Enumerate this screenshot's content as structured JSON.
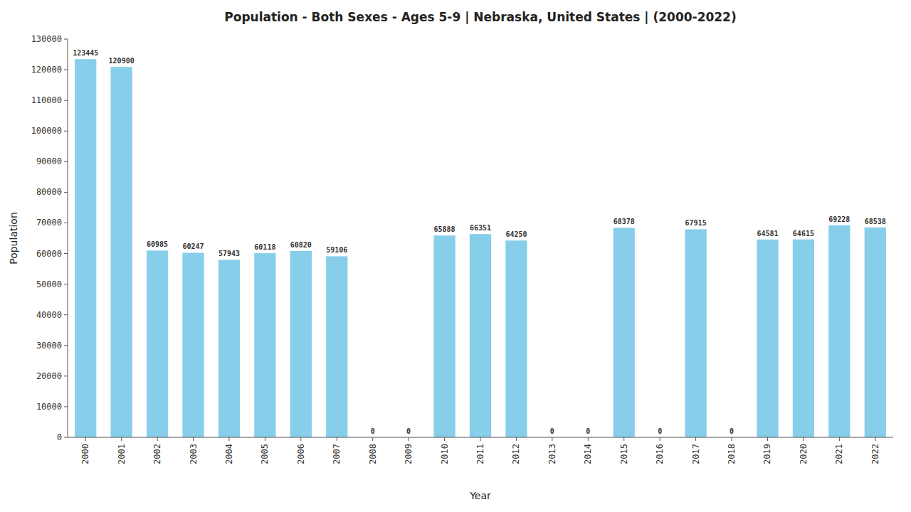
{
  "chart_data": {
    "type": "bar",
    "title": "Population - Both Sexes - Ages 5-9 | Nebraska, United States |  (2000-2022)",
    "xlabel": "Year",
    "ylabel": "Population",
    "categories": [
      "2000",
      "2001",
      "2002",
      "2003",
      "2004",
      "2005",
      "2006",
      "2007",
      "2008",
      "2009",
      "2010",
      "2011",
      "2012",
      "2013",
      "2014",
      "2015",
      "2016",
      "2017",
      "2018",
      "2019",
      "2020",
      "2021",
      "2022"
    ],
    "values": [
      123445,
      120900,
      60985,
      60247,
      57943,
      60118,
      60820,
      59106,
      0,
      0,
      65888,
      66351,
      64250,
      0,
      0,
      68378,
      0,
      67915,
      0,
      64581,
      64615,
      69228,
      68538
    ],
    "color": "#87CEEB",
    "ylim": [
      0,
      130000
    ],
    "yticks": [
      0,
      10000,
      20000,
      30000,
      40000,
      50000,
      60000,
      70000,
      80000,
      90000,
      100000,
      110000,
      120000,
      130000
    ],
    "grid": false,
    "data_labels": true
  }
}
